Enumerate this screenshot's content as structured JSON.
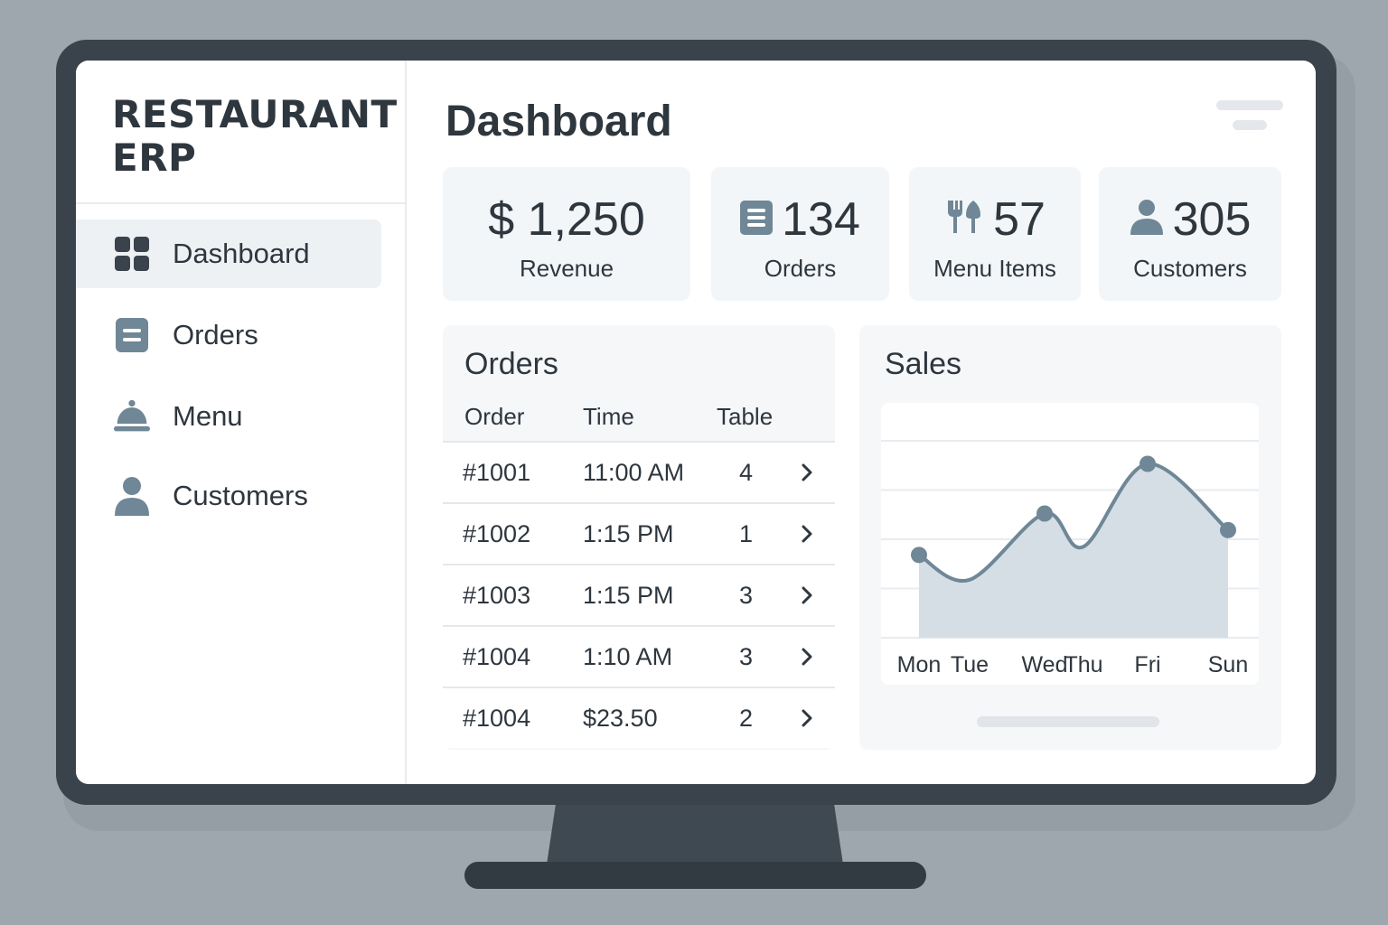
{
  "brand": {
    "line1": "RESTAURANT",
    "line2": "ERP"
  },
  "sidebar": {
    "items": [
      {
        "label": "Dashboard",
        "icon": "grid-icon",
        "active": true
      },
      {
        "label": "Orders",
        "icon": "receipt-icon",
        "active": false
      },
      {
        "label": "Menu",
        "icon": "cloche-icon",
        "active": false
      },
      {
        "label": "Customers",
        "icon": "user-icon",
        "active": false
      }
    ]
  },
  "page": {
    "title": "Dashboard"
  },
  "stats": [
    {
      "value": "$ 1,250",
      "label": "Revenue",
      "icon": ""
    },
    {
      "value": "134",
      "label": "Orders",
      "icon": "receipt-icon"
    },
    {
      "value": "57",
      "label": "Menu Items",
      "icon": "cutlery-icon"
    },
    {
      "value": "305",
      "label": "Customers",
      "icon": "user-icon"
    }
  ],
  "orders": {
    "title": "Orders",
    "columns": [
      "Order",
      "Time",
      "Table"
    ],
    "rows": [
      {
        "order": "#1001",
        "time": "11:00 AM",
        "table": "4"
      },
      {
        "order": "#1002",
        "time": "1:15 PM",
        "table": "1"
      },
      {
        "order": "#1003",
        "time": "1:15 PM",
        "table": "3"
      },
      {
        "order": "#1004",
        "time": "1:10 AM",
        "table": "3"
      },
      {
        "order": "#1004",
        "time": "$23.50",
        "table": "2"
      }
    ]
  },
  "sales": {
    "title": "Sales"
  },
  "chart_data": {
    "type": "area",
    "title": "Sales",
    "categories": [
      "Mon",
      "Tue",
      "Wed",
      "Thu",
      "Fri",
      "Sun"
    ],
    "values": [
      2.0,
      1.4,
      3.0,
      2.2,
      4.2,
      2.6
    ],
    "ylim": [
      0,
      4.8
    ],
    "grid": true,
    "colors": {
      "line": "#6f8796",
      "fill": "#d5dee5",
      "point": "#6f8796"
    }
  },
  "colors": {
    "accent": "#6f8796",
    "text": "#2e363e",
    "card": "#f3f6f8"
  }
}
